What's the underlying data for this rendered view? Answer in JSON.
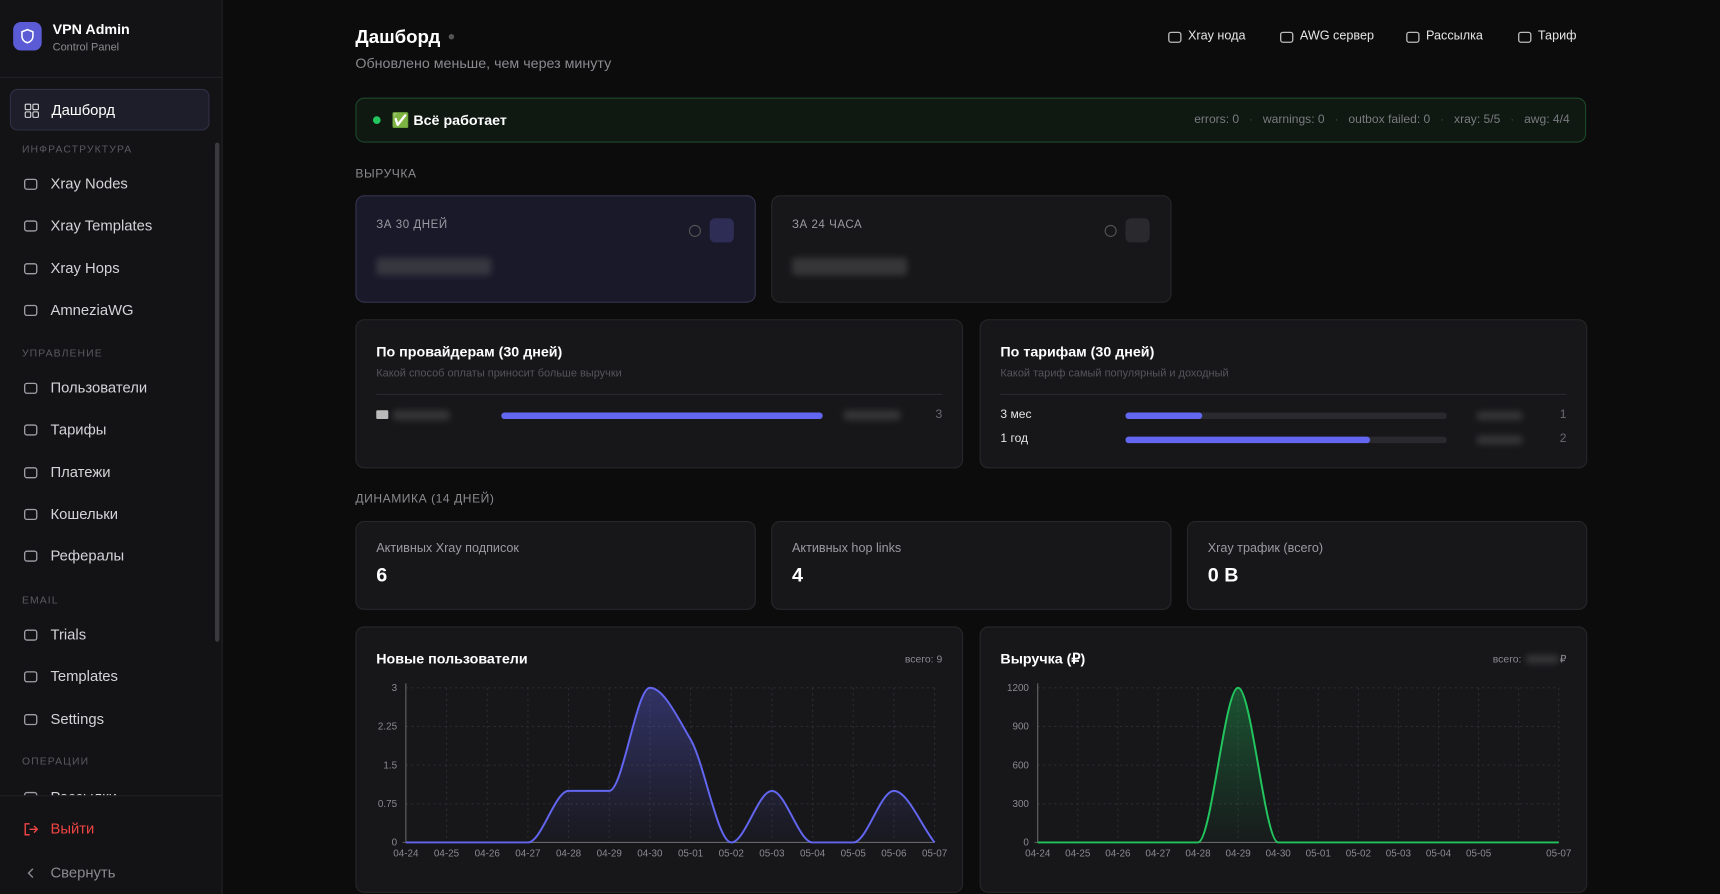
{
  "sidebar": {
    "brand": "VPN Admin",
    "subtitle": "Control Panel",
    "active": "Дашборд",
    "sections": [
      {
        "title": "ИНФРАСТРУКТУРА",
        "items": [
          "Xray Nodes",
          "Xray Templates",
          "Xray Hops",
          "AmneziaWG"
        ]
      },
      {
        "title": "УПРАВЛЕНИЕ",
        "items": [
          "Пользователи",
          "Тарифы",
          "Платежи",
          "Кошельки",
          "Рефералы"
        ]
      },
      {
        "title": "EMAIL",
        "items": [
          "Trials",
          "Templates",
          "Settings"
        ]
      },
      {
        "title": "ОПЕРАЦИИ",
        "items": [
          "Рассылки"
        ]
      }
    ],
    "logout": "Выйти",
    "collapse": "Свернуть"
  },
  "header": {
    "title": "Дашборд",
    "updated": "Обновлено меньше, чем через минуту",
    "actions": [
      "Xray нода",
      "AWG сервер",
      "Рассылка",
      "Тариф"
    ]
  },
  "status": {
    "text": "✅ Всё работает",
    "metrics": [
      "errors: 0",
      "warnings: 0",
      "outbox failed: 0",
      "xray: 5/5",
      "awg: 4/4"
    ]
  },
  "revenue": {
    "title": "ВЫРУЧКА",
    "cards": [
      "ЗА 30 ДНЕЙ",
      "ЗА 24 ЧАСА"
    ]
  },
  "providers": {
    "title": "По провайдерам (30 дней)",
    "subtitle": "Какой способ оплаты приносит больше выручки",
    "rows": [
      {
        "count": 3,
        "share": 100
      }
    ]
  },
  "tariffs": {
    "title": "По тарифам (30 дней)",
    "subtitle": "Какой тариф самый популярный и доходный",
    "rows": [
      {
        "name": "3 мес",
        "count": 1,
        "share": 24
      },
      {
        "name": "1 год",
        "count": 2,
        "share": 76
      }
    ]
  },
  "dynamics": {
    "title": "ДИНАМИКА (14 ДНЕЙ)",
    "stats": [
      {
        "label": "Активных Xray подписок",
        "value": 6
      },
      {
        "label": "Активных hop links",
        "value": 4
      },
      {
        "label": "Xray трафик (всего)",
        "value": "0 B"
      }
    ]
  },
  "chart_data": [
    {
      "type": "line",
      "title": "Новые пользователи",
      "total": "всего: 9",
      "color": "#6366f1",
      "categories": [
        "04-24",
        "04-25",
        "04-26",
        "04-27",
        "04-28",
        "04-29",
        "04-30",
        "05-01",
        "05-02",
        "05-03",
        "05-04",
        "05-05",
        "05-06",
        "05-07"
      ],
      "values": [
        0,
        0,
        0,
        0,
        1,
        1,
        3,
        2,
        0,
        1,
        0,
        0,
        1,
        0
      ],
      "ylim": [
        0,
        3
      ],
      "yticks": [
        0,
        {
          "value": 0.75,
          "label": "0.75"
        },
        {
          "value": 1.5,
          "label": "1.5"
        },
        2.25,
        3
      ],
      "grid": true
    },
    {
      "type": "line",
      "title": "Выручка (₽)",
      "total": "всего:",
      "total_unit": "₽",
      "color": "#22c55e",
      "categories": [
        "04-24",
        "04-25",
        "04-26",
        "04-27",
        "04-28",
        "04-29",
        "04-30",
        "05-01",
        "05-02",
        "05-03",
        "05-04",
        "05-05",
        null,
        "05-07"
      ],
      "values": [
        0,
        0,
        0,
        0,
        0,
        1200,
        0,
        0,
        0,
        0,
        0,
        0,
        0,
        0
      ],
      "ylim": [
        0,
        1200
      ],
      "yticks": [
        0,
        300,
        600,
        900,
        1200
      ],
      "grid": true
    }
  ]
}
